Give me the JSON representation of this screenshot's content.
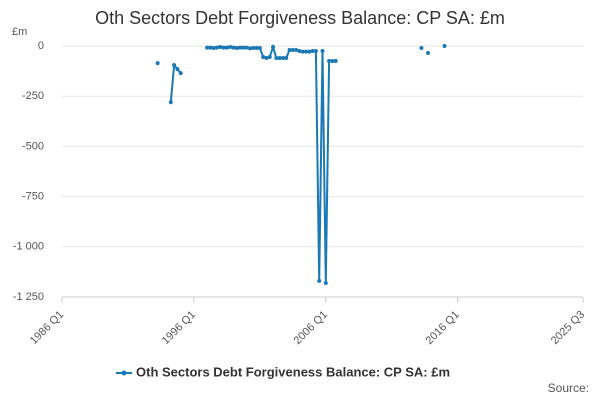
{
  "chart_data": {
    "type": "line",
    "title": "Oth Sectors Debt Forgiveness Balance: CP SA: £m",
    "y_unit": "£m",
    "source_label": "Source:",
    "x": [
      1993.25,
      1993.5,
      1994.25,
      1994.5,
      1994.75,
      1995.0,
      1995.25,
      1997.0,
      1997.25,
      1997.5,
      1997.75,
      1998.0,
      1998.25,
      1998.5,
      1998.75,
      1999.0,
      1999.25,
      1999.5,
      1999.75,
      2000.0,
      2000.25,
      2000.5,
      2000.75,
      2001.0,
      2001.25,
      2001.5,
      2001.75,
      2002.0,
      2002.25,
      2002.5,
      2002.75,
      2003.0,
      2003.25,
      2003.5,
      2003.75,
      2004.0,
      2004.25,
      2004.5,
      2004.75,
      2005.0,
      2005.25,
      2005.5,
      2005.75,
      2006.0,
      2006.25,
      2006.5,
      2006.75,
      2007.0,
      2013.25,
      2013.5,
      2013.75,
      2014.0,
      2015.0
    ],
    "series": [
      {
        "name": "Oth Sectors Debt Forgiveness Balance: CP SA: £m",
        "color": "#1a78b4",
        "values": [
          -85,
          null,
          -280,
          -95,
          -115,
          -135,
          null,
          -8,
          -8,
          -10,
          -8,
          -5,
          -8,
          -8,
          -5,
          -8,
          -10,
          -8,
          -8,
          -8,
          -12,
          -10,
          -10,
          -10,
          -55,
          -60,
          -55,
          -5,
          -60,
          -60,
          -60,
          -60,
          -20,
          -20,
          -20,
          -25,
          -28,
          -28,
          -28,
          -25,
          -25,
          -1170,
          -25,
          -1180,
          -75,
          -75,
          -75,
          null,
          -10,
          null,
          -35,
          null,
          0
        ]
      }
    ],
    "xlim": [
      1986,
      2025.5
    ],
    "xticks": [
      {
        "value": 1986,
        "label": "1986 Q1"
      },
      {
        "value": 1996,
        "label": "1996 Q1"
      },
      {
        "value": 2006,
        "label": "2006 Q1"
      },
      {
        "value": 2016,
        "label": "2016 Q1"
      },
      {
        "value": 2025.5,
        "label": "2025 Q3"
      }
    ],
    "ylim": [
      -1250,
      0
    ],
    "yticks": [
      0,
      -250,
      -500,
      -750,
      {
        "value": -1000,
        "label": "-1 000"
      },
      {
        "value": -1250,
        "label": "-1 250"
      }
    ],
    "grid": true
  }
}
